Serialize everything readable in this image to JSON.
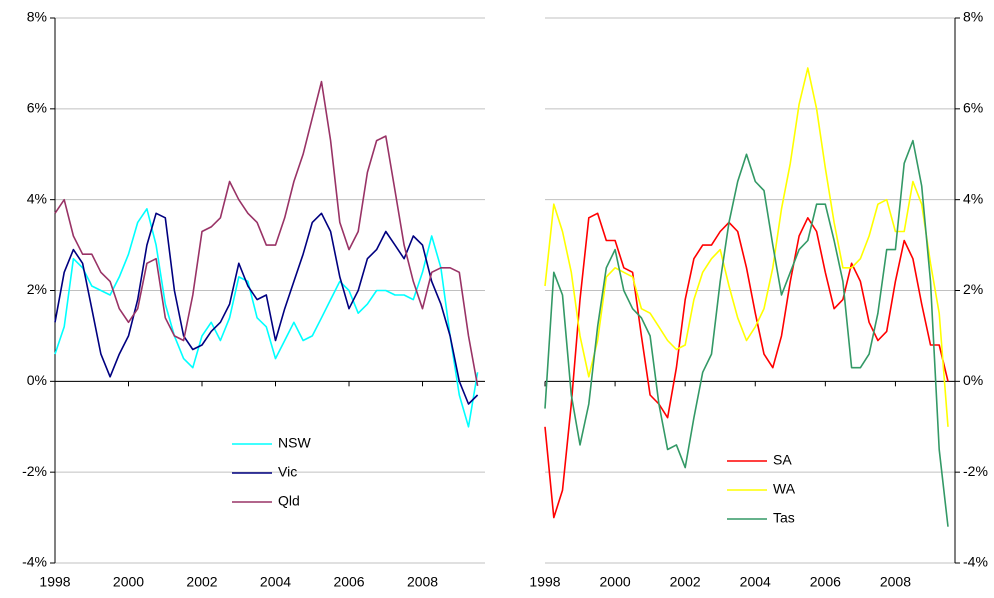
{
  "chart_data": [
    {
      "type": "line",
      "x": [
        1998,
        1998.25,
        1998.5,
        1998.75,
        1999,
        1999.25,
        1999.5,
        1999.75,
        2000,
        2000.25,
        2000.5,
        2000.75,
        2001,
        2001.25,
        2001.5,
        2001.75,
        2002,
        2002.25,
        2002.5,
        2002.75,
        2003,
        2003.25,
        2003.5,
        2003.75,
        2004,
        2004.25,
        2004.5,
        2004.75,
        2005,
        2005.25,
        2005.5,
        2005.75,
        2006,
        2006.25,
        2006.5,
        2006.75,
        2007,
        2007.25,
        2007.5,
        2007.75,
        2008,
        2008.25,
        2008.5,
        2008.75,
        2009,
        2009.25,
        2009.5
      ],
      "series": [
        {
          "name": "NSW",
          "color": "#00ffff",
          "values": [
            0.6,
            1.2,
            2.7,
            2.5,
            2.1,
            2.0,
            1.9,
            2.3,
            2.8,
            3.5,
            3.8,
            3.0,
            1.7,
            1.0,
            0.5,
            0.3,
            1.0,
            1.3,
            0.9,
            1.4,
            2.3,
            2.2,
            1.4,
            1.2,
            0.5,
            0.9,
            1.3,
            0.9,
            1.0,
            1.4,
            1.8,
            2.2,
            2.0,
            1.5,
            1.7,
            2.0,
            2.0,
            1.9,
            1.9,
            1.8,
            2.4,
            3.2,
            2.5,
            1.0,
            -0.3,
            -1.0,
            0.2
          ]
        },
        {
          "name": "Vic",
          "color": "#000080",
          "values": [
            1.3,
            2.4,
            2.9,
            2.6,
            1.6,
            0.6,
            0.1,
            0.6,
            1.0,
            1.8,
            3.0,
            3.7,
            3.6,
            2.0,
            1.0,
            0.7,
            0.8,
            1.1,
            1.3,
            1.7,
            2.6,
            2.1,
            1.8,
            1.9,
            0.9,
            1.6,
            2.2,
            2.8,
            3.5,
            3.7,
            3.3,
            2.3,
            1.6,
            2.0,
            2.7,
            2.9,
            3.3,
            3.0,
            2.7,
            3.2,
            3.0,
            2.2,
            1.7,
            1.0,
            0.0,
            -0.5,
            -0.3
          ]
        },
        {
          "name": "Qld",
          "color": "#993366",
          "values": [
            3.7,
            4.0,
            3.2,
            2.8,
            2.8,
            2.4,
            2.2,
            1.6,
            1.3,
            1.6,
            2.6,
            2.7,
            1.4,
            1.0,
            0.9,
            1.9,
            3.3,
            3.4,
            3.6,
            4.4,
            4.0,
            3.7,
            3.5,
            3.0,
            3.0,
            3.6,
            4.4,
            5.0,
            5.8,
            6.6,
            5.3,
            3.5,
            2.9,
            3.3,
            4.6,
            5.3,
            5.4,
            4.2,
            3.0,
            2.2,
            1.6,
            2.4,
            2.5,
            2.5,
            2.4,
            1.0,
            -0.1
          ]
        }
      ],
      "xlim": [
        1998,
        2009.7
      ],
      "xticks": [
        1998,
        2000,
        2002,
        2004,
        2006,
        2008
      ],
      "ylim": [
        -4,
        8
      ],
      "yticks": [
        {
          "value": -4,
          "label": "-4%"
        },
        {
          "value": -2,
          "label": "-2%"
        },
        {
          "value": 0,
          "label": "0%"
        },
        {
          "value": 2,
          "label": "2%"
        },
        {
          "value": 4,
          "label": "4%"
        },
        {
          "value": 6,
          "label": "6%"
        },
        {
          "value": 8,
          "label": "8%"
        }
      ],
      "grid": true,
      "y_axis_side": "left"
    },
    {
      "type": "line",
      "x": [
        1998,
        1998.25,
        1998.5,
        1998.75,
        1999,
        1999.25,
        1999.5,
        1999.75,
        2000,
        2000.25,
        2000.5,
        2000.75,
        2001,
        2001.25,
        2001.5,
        2001.75,
        2002,
        2002.25,
        2002.5,
        2002.75,
        2003,
        2003.25,
        2003.5,
        2003.75,
        2004,
        2004.25,
        2004.5,
        2004.75,
        2005,
        2005.25,
        2005.5,
        2005.75,
        2006,
        2006.25,
        2006.5,
        2006.75,
        2007,
        2007.25,
        2007.5,
        2007.75,
        2008,
        2008.25,
        2008.5,
        2008.75,
        2009,
        2009.25,
        2009.5
      ],
      "series": [
        {
          "name": "SA",
          "color": "#ff0000",
          "values": [
            -1.0,
            -3.0,
            -2.4,
            -0.5,
            1.8,
            3.6,
            3.7,
            3.1,
            3.1,
            2.5,
            2.4,
            1.0,
            -0.3,
            -0.5,
            -0.8,
            0.3,
            1.8,
            2.7,
            3.0,
            3.0,
            3.3,
            3.5,
            3.3,
            2.5,
            1.5,
            0.6,
            0.3,
            1.0,
            2.2,
            3.2,
            3.6,
            3.3,
            2.4,
            1.6,
            1.8,
            2.6,
            2.2,
            1.3,
            0.9,
            1.1,
            2.2,
            3.1,
            2.7,
            1.7,
            0.8,
            0.8,
            0.0
          ]
        },
        {
          "name": "WA",
          "color": "#ffff00",
          "values": [
            2.1,
            3.9,
            3.3,
            2.4,
            1.0,
            0.1,
            0.9,
            2.3,
            2.5,
            2.4,
            2.3,
            1.6,
            1.5,
            1.2,
            0.9,
            0.7,
            0.8,
            1.8,
            2.4,
            2.7,
            2.9,
            2.1,
            1.4,
            0.9,
            1.2,
            1.6,
            2.5,
            3.8,
            4.8,
            6.1,
            6.9,
            6.0,
            4.7,
            3.5,
            2.5,
            2.5,
            2.7,
            3.2,
            3.9,
            4.0,
            3.3,
            3.3,
            4.4,
            3.9,
            2.6,
            1.5,
            -1.0
          ]
        },
        {
          "name": "Tas",
          "color": "#339966",
          "values": [
            -0.6,
            2.4,
            1.9,
            -0.3,
            -1.4,
            -0.5,
            1.2,
            2.5,
            2.9,
            2.0,
            1.6,
            1.4,
            1.0,
            -0.5,
            -1.5,
            -1.4,
            -1.9,
            -0.8,
            0.2,
            0.6,
            2.2,
            3.5,
            4.4,
            5.0,
            4.4,
            4.2,
            3.0,
            1.9,
            2.4,
            2.9,
            3.1,
            3.9,
            3.9,
            3.1,
            2.2,
            0.3,
            0.3,
            0.6,
            1.5,
            2.9,
            2.9,
            4.8,
            5.3,
            4.3,
            2.2,
            -1.5,
            -3.2
          ]
        }
      ],
      "xlim": [
        1998,
        2009.7
      ],
      "xticks": [
        1998,
        2000,
        2002,
        2004,
        2006,
        2008
      ],
      "ylim": [
        -4,
        8
      ],
      "yticks": [
        {
          "value": -4,
          "label": "-4%"
        },
        {
          "value": -2,
          "label": "-2%"
        },
        {
          "value": 0,
          "label": "0%"
        },
        {
          "value": 2,
          "label": "2%"
        },
        {
          "value": 4,
          "label": "4%"
        },
        {
          "value": 6,
          "label": "6%"
        },
        {
          "value": 8,
          "label": "8%"
        }
      ],
      "grid": true,
      "y_axis_side": "right"
    }
  ]
}
